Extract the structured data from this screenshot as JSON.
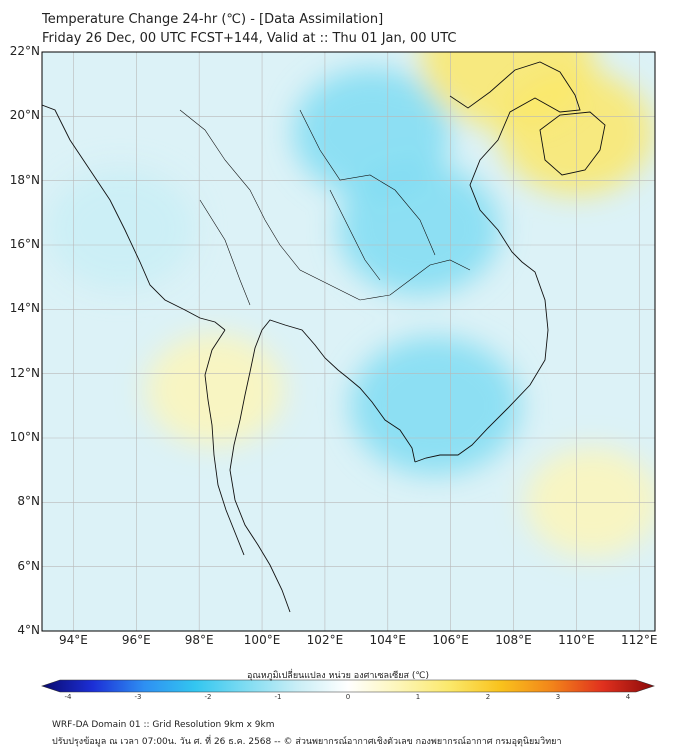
{
  "title": {
    "line1": "Temperature Change 24-hr (℃) - [Data Assimilation]",
    "line2": "Friday 26 Dec, 00 UTC FCST+144, Valid at :: Thu 01 Jan, 00 UTC"
  },
  "axes": {
    "lat_labels": [
      "22°N",
      "20°N",
      "18°N",
      "16°N",
      "14°N",
      "12°N",
      "10°N",
      "8°N",
      "6°N",
      "4°N"
    ],
    "lon_labels": [
      "94°E",
      "96°E",
      "98°E",
      "100°E",
      "102°E",
      "104°E",
      "106°E",
      "108°E",
      "110°E",
      "112°E"
    ]
  },
  "colorbar": {
    "title": "อุณหภูมิเปลี่ยนแปลง หน่วย องศาเซลเซียส (℃)",
    "ticks": [
      "-4",
      "-3",
      "-2",
      "-1",
      "0",
      "1",
      "2",
      "3",
      "4"
    ],
    "colors": [
      "#0a0a6e",
      "#1c2fd6",
      "#2e8ff2",
      "#33c6f0",
      "#7fdcf2",
      "#c9eef6",
      "#ffffff",
      "#fdf6b8",
      "#fbe86a",
      "#f9c21c",
      "#f2841a",
      "#e0301e",
      "#8b0a0a"
    ]
  },
  "footer": {
    "line1": "WRF-DA Domain 01 :: Grid Resolution 9km x 9km",
    "line2": "ปรับปรุงข้อมูล ณ เวลา 07:00น. วัน ศ. ที่ 26 ธ.ค. 2568 -- © ส่วนพยากรณ์อากาศเชิงตัวเลข กองพยากรณ์อากาศ กรมอุตุนิยมวิทยา"
  },
  "chart_data": {
    "type": "heatmap",
    "variable": "24-hr temperature change",
    "units": "℃",
    "lat_range": [
      4,
      22
    ],
    "lon_range": [
      93,
      112.5
    ],
    "color_range": [
      -4,
      4
    ],
    "features": [
      {
        "name": "cooling-north-laos-vietnam",
        "lon": 103.5,
        "lat": 19.5,
        "value": -1.2
      },
      {
        "name": "cooling-central-laos",
        "lon": 105.0,
        "lat": 16.5,
        "value": -1.3
      },
      {
        "name": "cooling-cambodia",
        "lon": 105.5,
        "lat": 11.0,
        "value": -1.5
      },
      {
        "name": "cooling-myanmar-west",
        "lon": 95.5,
        "lat": 16.5,
        "value": -1.0
      },
      {
        "name": "warming-hainan",
        "lon": 110.0,
        "lat": 19.5,
        "value": 1.1
      },
      {
        "name": "warming-gulf-of-tonkin-north",
        "lon": 107.8,
        "lat": 21.8,
        "value": 1.6
      },
      {
        "name": "warming-andaman-coast",
        "lon": 98.5,
        "lat": 11.5,
        "value": 0.7
      },
      {
        "name": "warming-south-china-sea",
        "lon": 110.5,
        "lat": 8.0,
        "value": 0.6
      }
    ]
  }
}
